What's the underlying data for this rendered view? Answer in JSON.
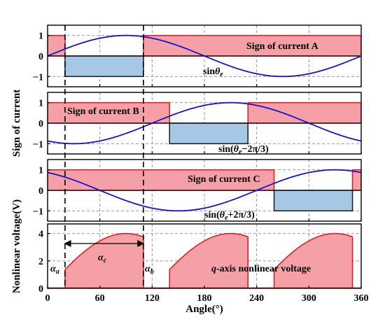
{
  "colors": {
    "pos_fill": "#f4a0a6",
    "pos_stroke": "#e8141c",
    "neg_fill": "#a6c8e4",
    "neg_stroke": "#1a1a1a",
    "sine": "#1414d2",
    "grid": "#9a9a9a",
    "axis": "#000000"
  },
  "chart_data": [
    {
      "type": "area",
      "panel": "A",
      "label": "Sign of current A",
      "sine_label": {
        "text": "sin",
        "var": "θ",
        "sub": "e",
        "rest": ""
      },
      "xlim": [
        0,
        360
      ],
      "ylim": [
        -1.5,
        1.5
      ],
      "yticks": [
        1,
        0,
        -1
      ],
      "sine_shift_deg": 0,
      "sign_segments": [
        {
          "x0": 0,
          "x1": 20,
          "value": 1
        },
        {
          "x0": 20,
          "x1": 110,
          "value": -1
        },
        {
          "x0": 110,
          "x1": 360,
          "value": 1
        }
      ],
      "grid": true
    },
    {
      "type": "area",
      "panel": "B",
      "label": "Sign of current B",
      "sine_label": {
        "text": "sin(",
        "var": "θ",
        "sub": "e",
        "rest": "−2π/3)"
      },
      "xlim": [
        0,
        360
      ],
      "ylim": [
        -1.5,
        1.5
      ],
      "yticks": [
        1,
        0,
        -1
      ],
      "sine_shift_deg": -120,
      "sign_segments": [
        {
          "x0": 0,
          "x1": 140,
          "value": 1
        },
        {
          "x0": 140,
          "x1": 230,
          "value": -1
        },
        {
          "x0": 230,
          "x1": 360,
          "value": 1
        }
      ],
      "grid": true
    },
    {
      "type": "area",
      "panel": "C",
      "label": "Sign of current C",
      "sine_label": {
        "text": "sin(",
        "var": "θ",
        "sub": "e",
        "rest": "+2π/3)"
      },
      "xlim": [
        0,
        360
      ],
      "ylim": [
        -1.5,
        1.5
      ],
      "yticks": [
        1,
        0,
        -1
      ],
      "sine_shift_deg": 120,
      "sign_segments": [
        {
          "x0": 0,
          "x1": 260,
          "value": 1
        },
        {
          "x0": 260,
          "x1": 350,
          "value": -1
        },
        {
          "x0": 350,
          "x1": 360,
          "value": 1
        }
      ],
      "grid": true
    },
    {
      "type": "area",
      "panel": "voltage",
      "label": "q-axis nonlinear voltage",
      "label_italic_part": "q",
      "label_rest": "-axis nonlinear voltage",
      "xlim": [
        0,
        360
      ],
      "ylim": [
        0,
        4.7
      ],
      "yticks": [
        0,
        2,
        4
      ],
      "amplitude": 4,
      "segments": [
        {
          "x0": 20,
          "x1": 110,
          "shift_deg": 0
        },
        {
          "x0": 140,
          "x1": 230,
          "shift_deg": 120
        },
        {
          "x0": 260,
          "x1": 350,
          "shift_deg": 240
        }
      ],
      "annotations": {
        "alpha_a": {
          "sym": "α",
          "sub": "a"
        },
        "alpha_b": {
          "sym": "α",
          "sub": "b"
        },
        "alpha_c": {
          "sym": "α",
          "sub": "c"
        }
      },
      "grid": true
    }
  ],
  "axes": {
    "xticks": [
      0,
      60,
      120,
      180,
      240,
      300,
      360
    ],
    "xlabel": "Angle(°)",
    "ylabel_top": "Sign of current",
    "ylabel_bottom": "Nonlinear voltage(V)",
    "dashed_markers": [
      20,
      110
    ]
  }
}
